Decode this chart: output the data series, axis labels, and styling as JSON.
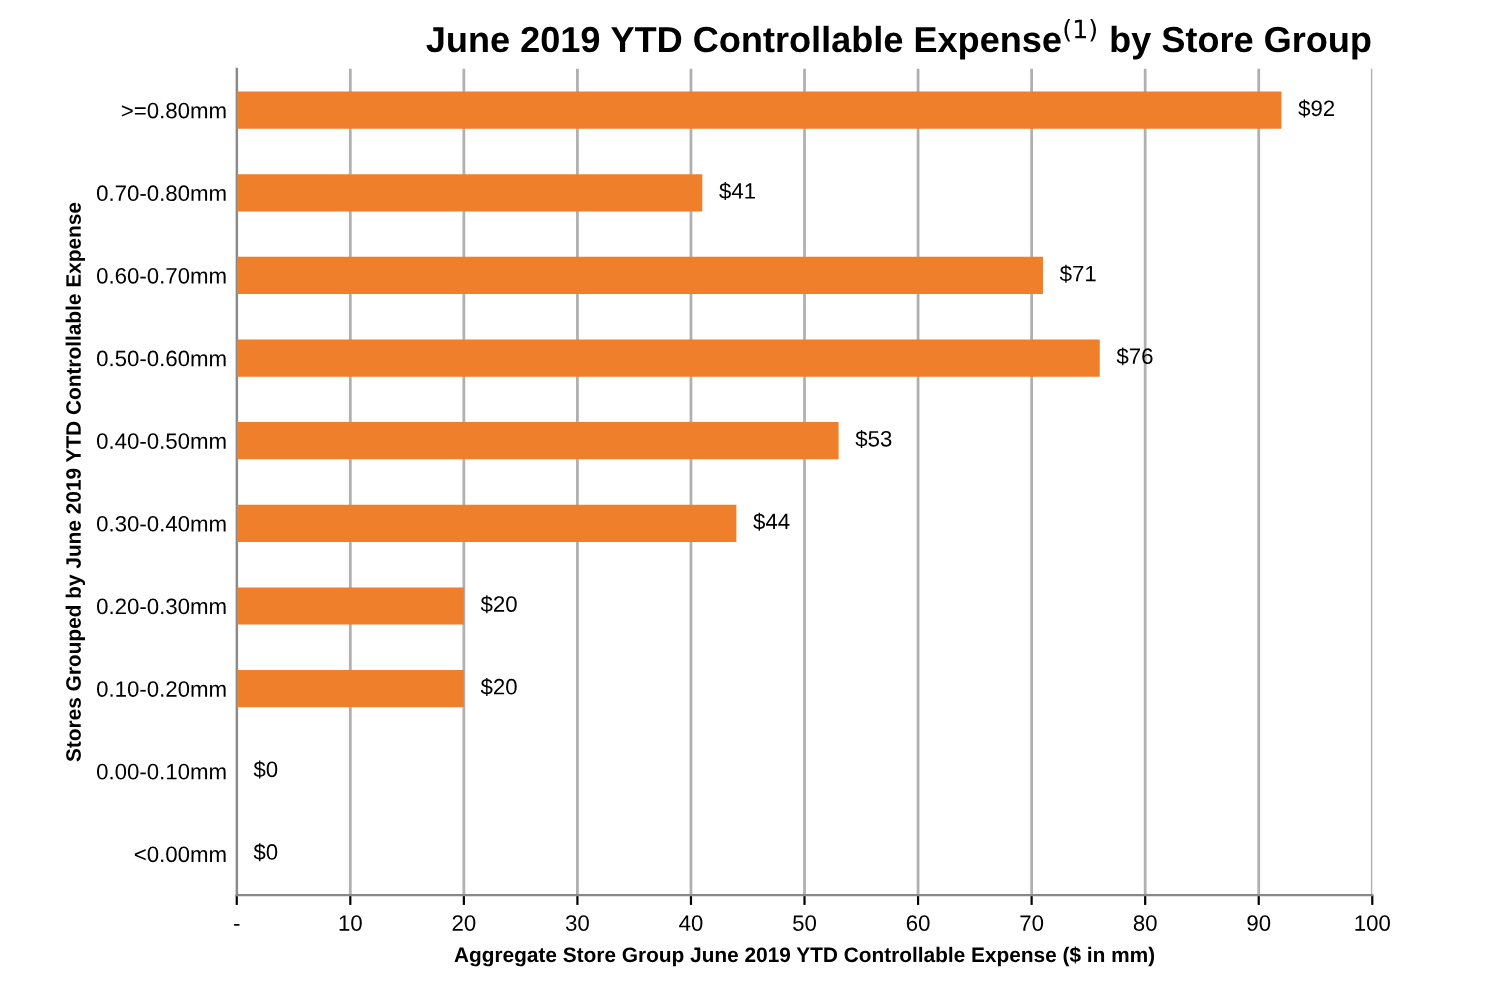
{
  "chart_data": {
    "type": "bar",
    "orientation": "horizontal",
    "title": "June 2019 YTD Controllable Expense$^{(1)}$ by Store Group",
    "xlabel": "Aggregate Store Group June 2019 YTD Controllable Expense ($ in mm)",
    "ylabel": "Stores Grouped by June 2019 YTD Controllable Expense",
    "categories": [
      ">=0.80mm",
      "0.70-0.80mm",
      "0.60-0.70mm",
      "0.50-0.60mm",
      "0.40-0.50mm",
      "0.30-0.40mm",
      "0.20-0.30mm",
      "0.10-0.20mm",
      "0.00-0.10mm",
      "<0.00mm"
    ],
    "values": [
      92,
      41,
      71,
      76,
      53,
      44,
      20,
      20,
      0,
      0
    ],
    "value_labels": [
      "$92",
      "$41",
      "$71",
      "$76",
      "$53",
      "$44",
      "$20",
      "$20",
      "$0",
      "$0"
    ],
    "color": "#f07f2b",
    "xlim": [
      0,
      100
    ],
    "xticks": [
      {
        "value": 0,
        "label": "-"
      },
      10,
      20,
      30,
      40,
      50,
      60,
      70,
      80,
      90,
      100
    ],
    "grid": "x"
  }
}
